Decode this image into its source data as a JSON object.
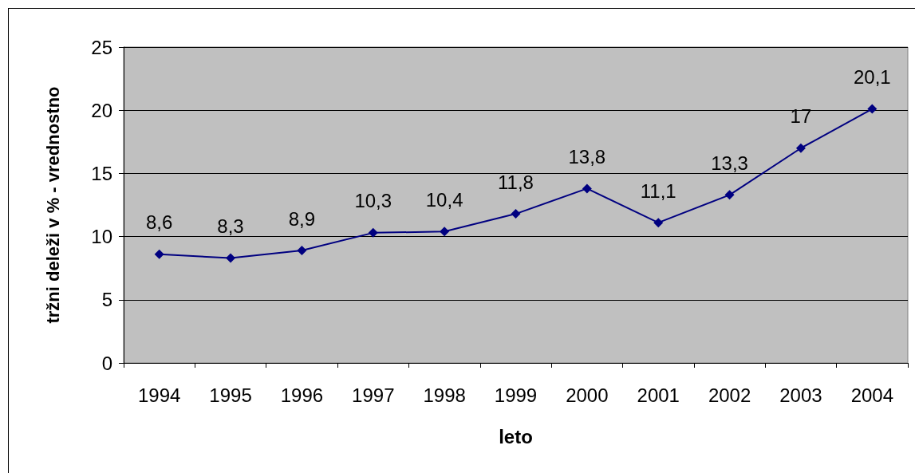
{
  "chart_data": {
    "type": "line",
    "xlabel": "leto",
    "ylabel": "tržni deleži v % - vrednostno",
    "categories": [
      "1994",
      "1995",
      "1996",
      "1997",
      "1998",
      "1999",
      "2000",
      "2001",
      "2002",
      "2003",
      "2004"
    ],
    "series": [
      {
        "color": "#000080",
        "values": [
          8.6,
          8.3,
          8.9,
          10.3,
          10.4,
          11.8,
          13.8,
          11.1,
          13.3,
          17,
          20.1
        ],
        "value_labels": [
          "8,6",
          "8,3",
          "8,9",
          "10,3",
          "10,4",
          "11,8",
          "13,8",
          "11,1",
          "13,3",
          "17",
          "20,1"
        ]
      }
    ],
    "ylim": [
      0,
      25
    ],
    "yticks": [
      0,
      5,
      10,
      15,
      20,
      25
    ],
    "grid": "y",
    "marker": "diamond",
    "line_style": "solid"
  }
}
